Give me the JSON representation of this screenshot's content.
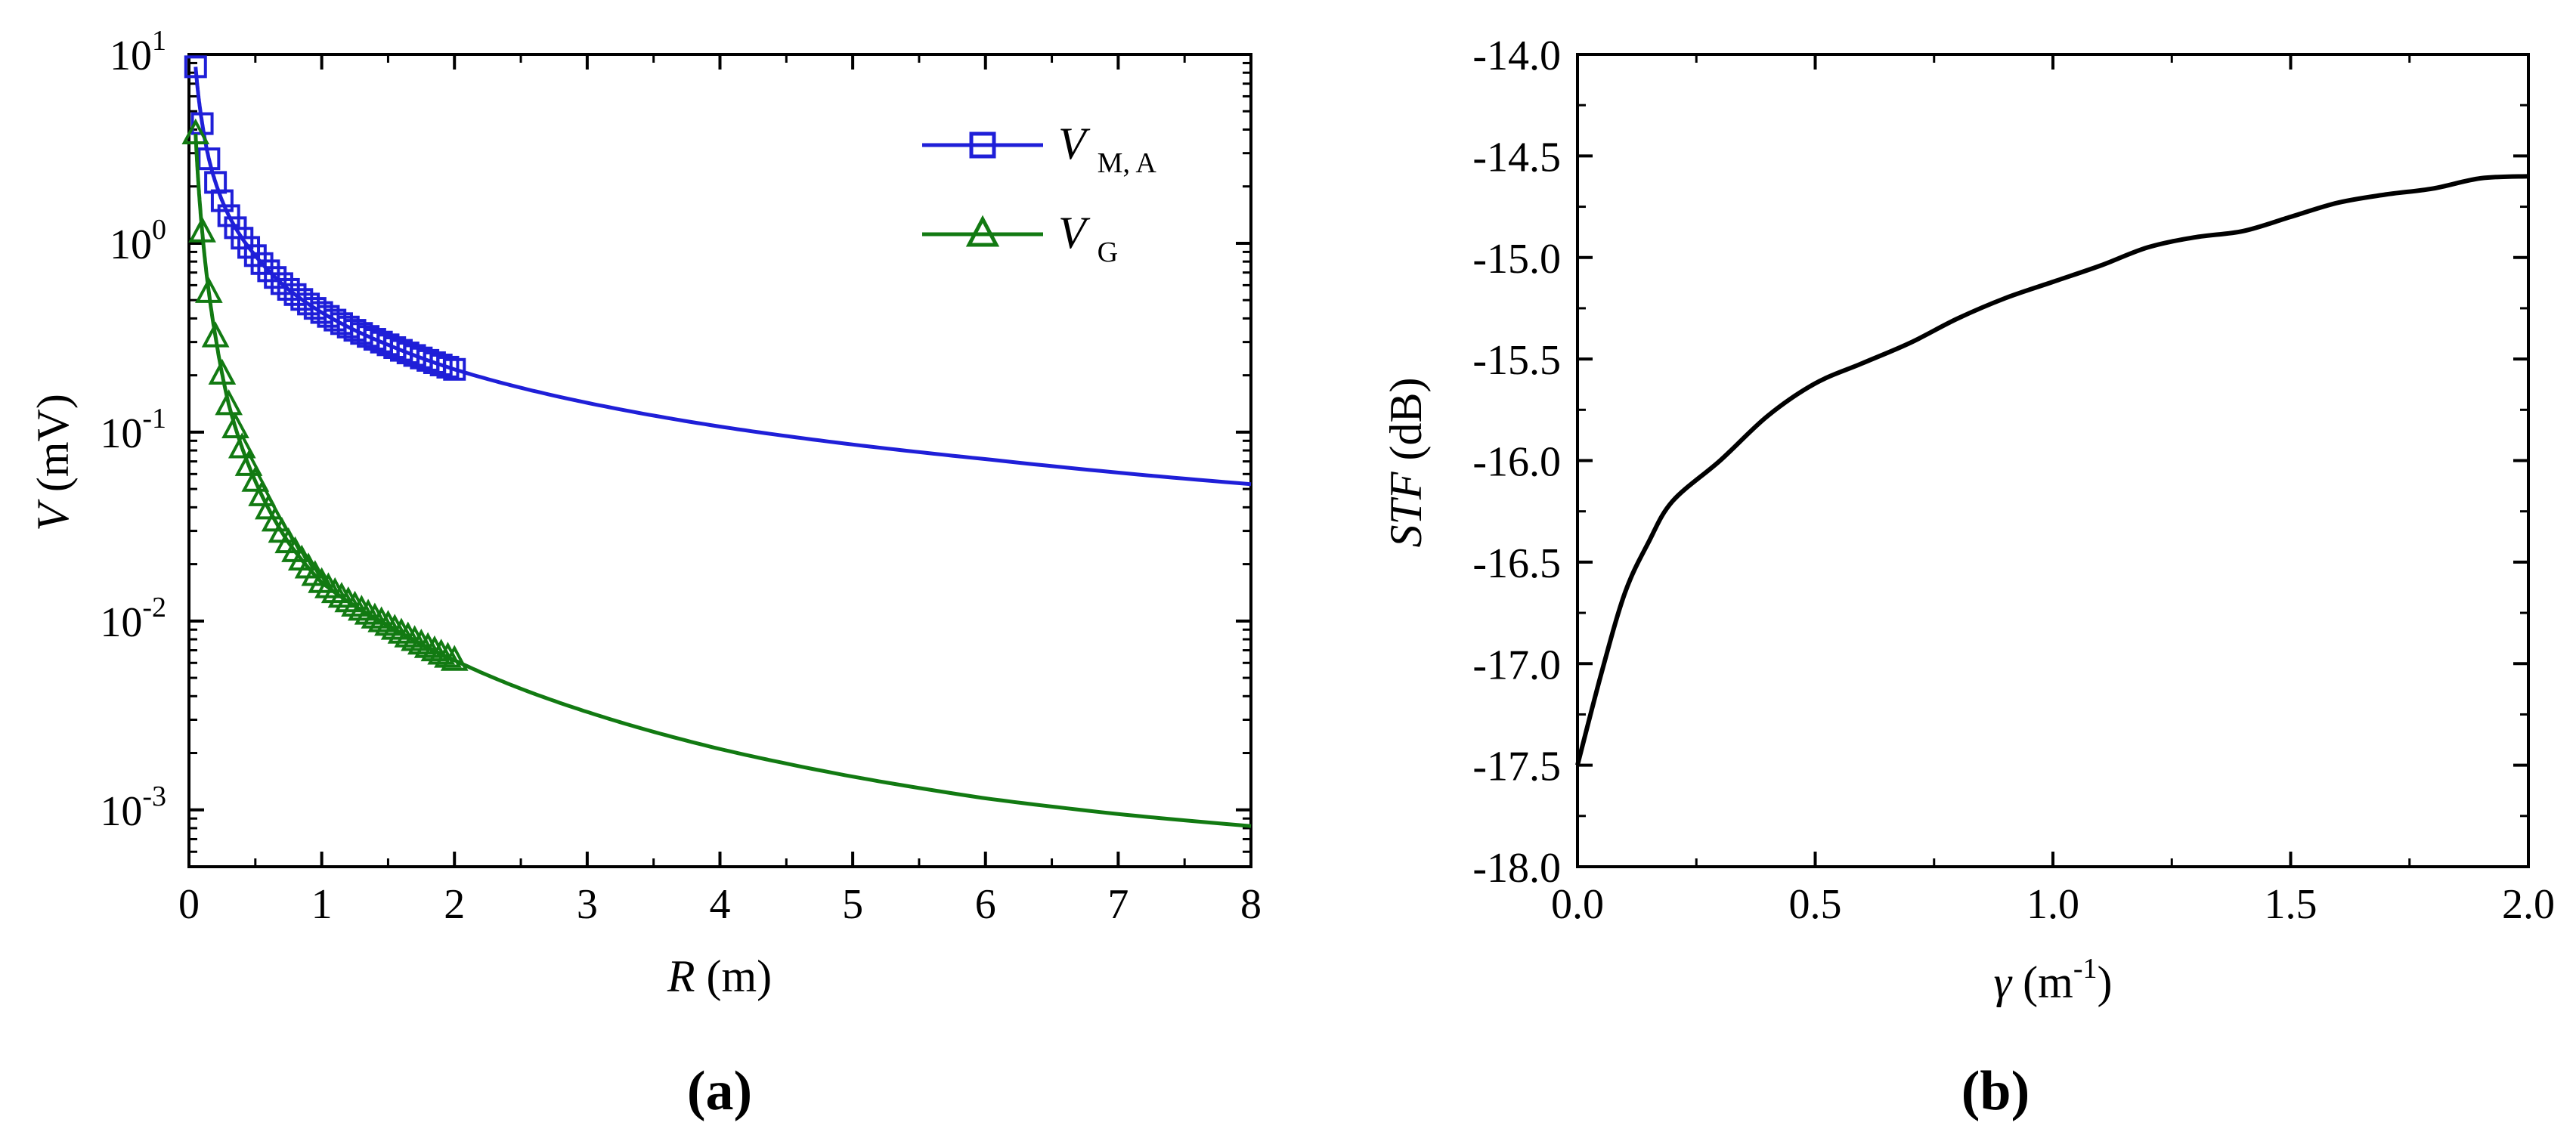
{
  "chart_data": [
    {
      "type": "line",
      "panel_label": "(a)",
      "panel_letter": "a",
      "xlabel": "R",
      "xlabel_unit": "(m)",
      "ylabel": "V",
      "ylabel_unit": "(mV)",
      "xlim": [
        0,
        8
      ],
      "ylim": [
        0.0005,
        10
      ],
      "yscale": "log",
      "xticks": [
        0,
        1,
        2,
        3,
        4,
        5,
        6,
        7,
        8
      ],
      "yticks": [
        {
          "base": "10",
          "exp": "1",
          "value": 10
        },
        {
          "base": "10",
          "exp": "0",
          "value": 1
        },
        {
          "base": "10",
          "exp": "-1",
          "value": 0.1
        },
        {
          "base": "10",
          "exp": "-2",
          "value": 0.01
        },
        {
          "base": "10",
          "exp": "-3",
          "value": 0.001
        }
      ],
      "legend_position": "top-right",
      "series": [
        {
          "name": "V_M,A",
          "label_main": "V",
          "label_sub": "M, A",
          "color": "#1f1fd8",
          "marker": "square",
          "marker_range": [
            0.05,
            2
          ],
          "x": [
            0.05,
            0.1,
            0.15,
            0.2,
            0.3,
            0.5,
            0.75,
            1,
            1.5,
            2,
            3,
            4,
            5,
            6,
            7,
            8
          ],
          "y": [
            8.6,
            4.3,
            2.8,
            2.1,
            1.4,
            0.86,
            0.57,
            0.43,
            0.29,
            0.215,
            0.143,
            0.107,
            0.086,
            0.072,
            0.061,
            0.053
          ]
        },
        {
          "name": "V_G",
          "label_main": "V",
          "label_sub": "G",
          "color": "#127a12",
          "marker": "triangle",
          "marker_range": [
            0.05,
            2
          ],
          "x": [
            0.05,
            0.1,
            0.15,
            0.2,
            0.3,
            0.5,
            0.75,
            1,
            1.5,
            2,
            3,
            4,
            5,
            6,
            7,
            8
          ],
          "y": [
            3.8,
            1.15,
            0.55,
            0.32,
            0.14,
            0.055,
            0.026,
            0.016,
            0.0095,
            0.0062,
            0.0033,
            0.0021,
            0.0015,
            0.00115,
            0.00095,
            0.00082
          ]
        }
      ]
    },
    {
      "type": "line",
      "panel_label": "(b)",
      "panel_letter": "b",
      "xlabel": "γ",
      "xlabel_unit_prefix": "(m",
      "xlabel_unit_exp": "-1",
      "xlabel_unit_suffix": ")",
      "ylabel": "STF",
      "ylabel_unit": "(dB)",
      "xlim": [
        0,
        2
      ],
      "ylim": [
        -18,
        -14
      ],
      "xticks": [
        "0.0",
        "0.5",
        "1.0",
        "1.5",
        "2.0"
      ],
      "yticks": [
        "-14.0",
        "-14.5",
        "-15.0",
        "-15.5",
        "-16.0",
        "-16.5",
        "-17.0",
        "-17.5",
        "-18.0"
      ],
      "series": [
        {
          "name": "STF",
          "color": "#000000",
          "x": [
            0,
            0.05,
            0.1,
            0.15,
            0.2,
            0.3,
            0.4,
            0.5,
            0.6,
            0.7,
            0.8,
            0.9,
            1.0,
            1.1,
            1.2,
            1.3,
            1.4,
            1.5,
            1.6,
            1.7,
            1.8,
            1.9,
            2.0
          ],
          "y": [
            -17.5,
            -17.05,
            -16.65,
            -16.4,
            -16.2,
            -16.0,
            -15.78,
            -15.62,
            -15.52,
            -15.42,
            -15.3,
            -15.2,
            -15.12,
            -15.04,
            -14.95,
            -14.9,
            -14.87,
            -14.8,
            -14.73,
            -14.69,
            -14.66,
            -14.61,
            -14.6
          ]
        }
      ]
    }
  ]
}
